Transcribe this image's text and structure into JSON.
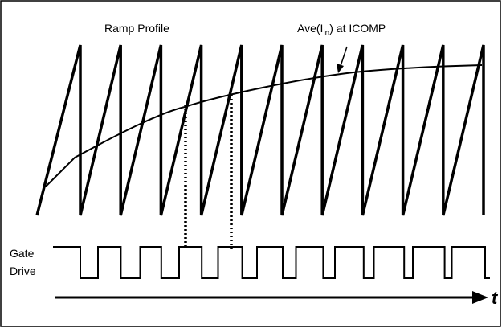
{
  "labels": {
    "ramp_profile": "Ramp Profile",
    "ave_prefix": "Ave(I",
    "ave_subscript": "in",
    "ave_suffix": ") at ICOMP",
    "gate": "Gate",
    "drive": "Drive",
    "time_axis": "t"
  },
  "colors": {
    "stroke": "#000000",
    "background": "#ffffff"
  },
  "diagram": {
    "ramp_count": 11,
    "gate_pulse_count": 11,
    "dotted_markers": 2
  }
}
